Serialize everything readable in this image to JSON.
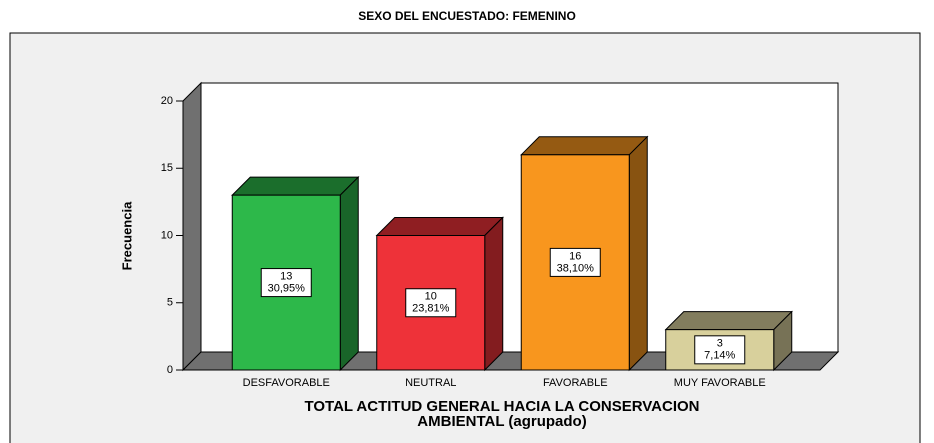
{
  "chart_data": {
    "type": "bar3d",
    "title": "SEXO DEL ENCUESTADO: FEMENINO",
    "ylabel": "Frecuencia",
    "xlabel": [
      "TOTAL ACTITUD GENERAL HACIA LA CONSERVACION",
      "AMBIENTAL (agrupado)"
    ],
    "categories": [
      "DESFAVORABLE",
      "NEUTRAL",
      "FAVORABLE",
      "MUY FAVORABLE"
    ],
    "values": [
      13,
      10,
      16,
      3
    ],
    "percentages": [
      30.95,
      23.81,
      38.1,
      7.14
    ],
    "percentage_labels": [
      "30,95%",
      "23,81%",
      "38,10%",
      "7,14%"
    ],
    "colors": [
      "#2db84a",
      "#ee3239",
      "#f8961e",
      "#d8d09c"
    ],
    "ylim": [
      0,
      20
    ],
    "yticks": [
      0,
      5,
      10,
      15,
      20
    ]
  }
}
